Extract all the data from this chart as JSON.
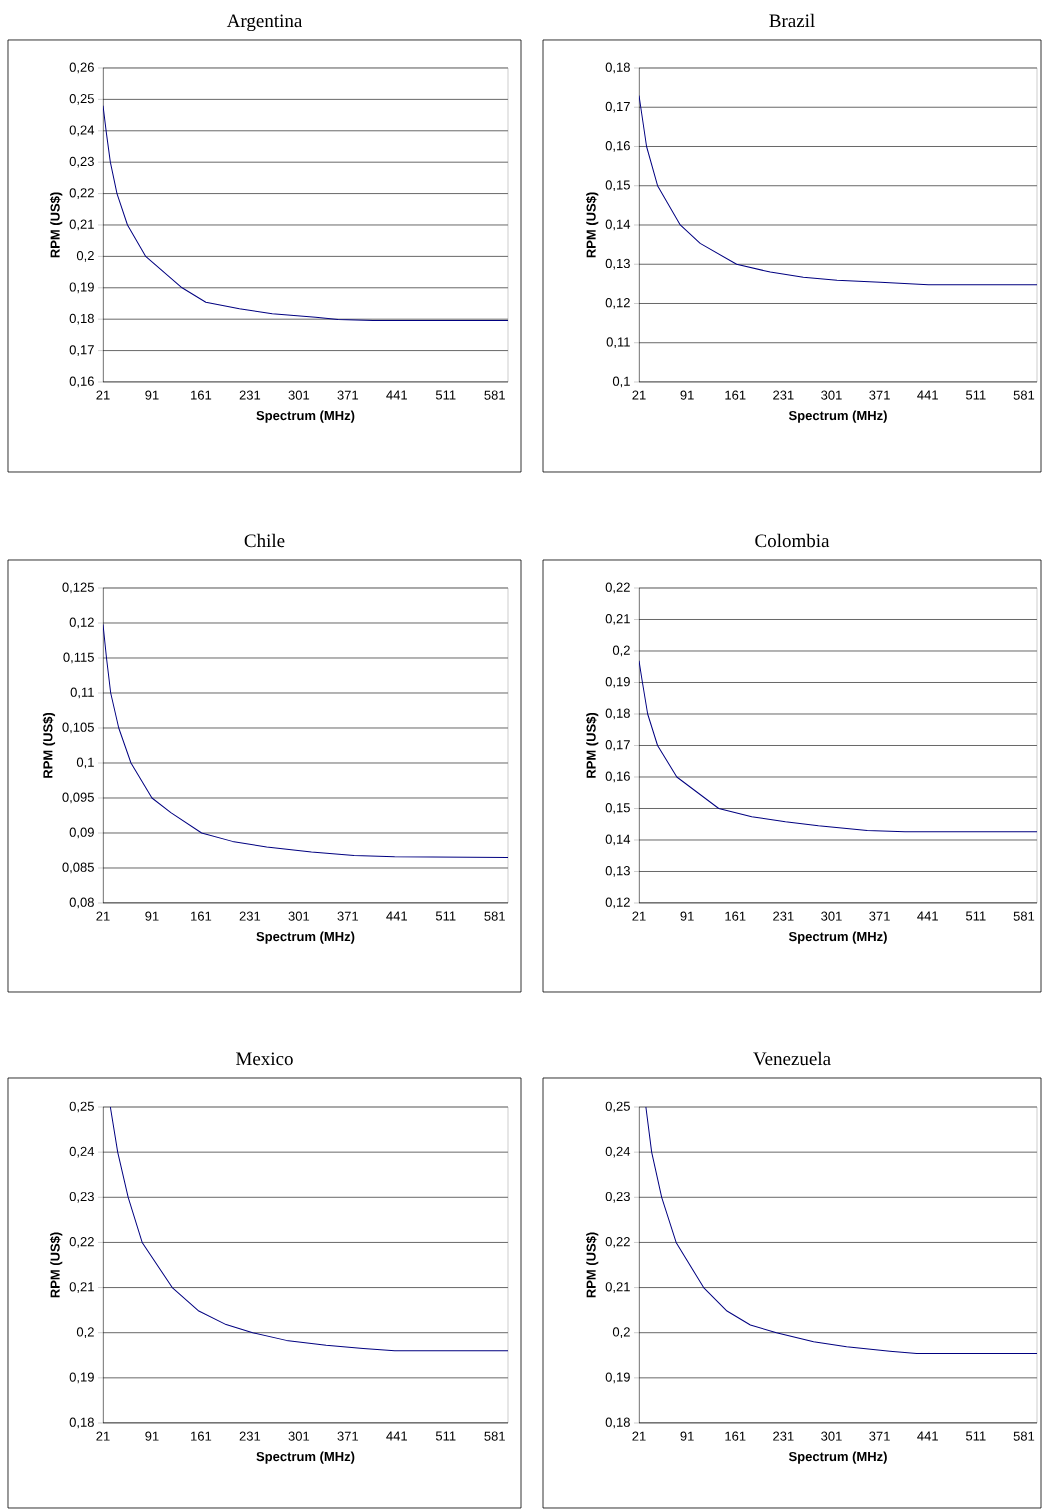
{
  "chart_data": [
    {
      "type": "line",
      "title": "Argentina",
      "xlabel": "Spectrum (MHz)",
      "ylabel": "RPM (US$)",
      "color": "#000080",
      "grid": "y",
      "x": [
        21,
        26,
        31.5,
        41,
        56,
        82,
        134,
        168,
        216,
        263,
        325,
        357,
        407,
        600
      ],
      "values": [
        0.248,
        0.239,
        0.23,
        0.22,
        0.21,
        0.2,
        0.19,
        0.1854,
        0.1833,
        0.1817,
        0.1806,
        0.1799,
        0.1796,
        0.1796
      ],
      "xlim": [
        21,
        600
      ],
      "xticks": [
        21,
        91,
        161,
        231,
        301,
        371,
        441,
        511,
        581
      ],
      "ylim": [
        0.16,
        0.26
      ],
      "yticks": [
        {
          "value": 0.16,
          "label": "0,16"
        },
        {
          "value": 0.17,
          "label": "0,17"
        },
        {
          "value": 0.18,
          "label": "0,18"
        },
        {
          "value": 0.19,
          "label": "0,19"
        },
        {
          "value": 0.2,
          "label": "0,2"
        },
        {
          "value": 0.21,
          "label": "0,21"
        },
        {
          "value": 0.22,
          "label": "0,22"
        },
        {
          "value": 0.23,
          "label": "0,23"
        },
        {
          "value": 0.24,
          "label": "0,24"
        },
        {
          "value": 0.25,
          "label": "0,25"
        },
        {
          "value": 0.26,
          "label": "0,26"
        }
      ]
    },
    {
      "type": "line",
      "title": "Brazil",
      "xlabel": "Spectrum (MHz)",
      "ylabel": "RPM (US$)",
      "color": "#000080",
      "grid": "y",
      "x": [
        21,
        32,
        48,
        81,
        110,
        163,
        212,
        260,
        309,
        372,
        442,
        600
      ],
      "values": [
        0.173,
        0.16,
        0.15,
        0.14,
        0.1353,
        0.13,
        0.128,
        0.1267,
        0.1259,
        0.1254,
        0.1248,
        0.1248
      ],
      "xlim": [
        21,
        600
      ],
      "xticks": [
        21,
        91,
        161,
        231,
        301,
        371,
        441,
        511,
        581
      ],
      "ylim": [
        0.1,
        0.18
      ],
      "yticks": [
        {
          "value": 0.1,
          "label": "0,1"
        },
        {
          "value": 0.11,
          "label": "0,11"
        },
        {
          "value": 0.12,
          "label": "0,12"
        },
        {
          "value": 0.13,
          "label": "0,13"
        },
        {
          "value": 0.14,
          "label": "0,14"
        },
        {
          "value": 0.15,
          "label": "0,15"
        },
        {
          "value": 0.16,
          "label": "0,16"
        },
        {
          "value": 0.17,
          "label": "0,17"
        },
        {
          "value": 0.18,
          "label": "0,18"
        }
      ]
    },
    {
      "type": "line",
      "title": "Chile",
      "xlabel": "Spectrum (MHz)",
      "ylabel": "RPM (US$)",
      "color": "#000080",
      "grid": "y",
      "x": [
        21,
        26,
        32,
        43.5,
        61,
        91,
        118,
        162,
        206,
        255,
        319,
        380,
        438,
        600
      ],
      "values": [
        0.1198,
        0.115,
        0.11,
        0.105,
        0.1,
        0.095,
        0.0929,
        0.09,
        0.0888,
        0.088,
        0.0873,
        0.0868,
        0.0866,
        0.0865
      ],
      "xlim": [
        21,
        600
      ],
      "xticks": [
        21,
        91,
        161,
        231,
        301,
        371,
        441,
        511,
        581
      ],
      "ylim": [
        0.08,
        0.125
      ],
      "yticks": [
        {
          "value": 0.08,
          "label": "0,08"
        },
        {
          "value": 0.085,
          "label": "0,085"
        },
        {
          "value": 0.09,
          "label": "0,09"
        },
        {
          "value": 0.095,
          "label": "0,095"
        },
        {
          "value": 0.1,
          "label": "0,1"
        },
        {
          "value": 0.105,
          "label": "0,105"
        },
        {
          "value": 0.11,
          "label": "0,11"
        },
        {
          "value": 0.115,
          "label": "0,115"
        },
        {
          "value": 0.12,
          "label": "0,12"
        },
        {
          "value": 0.125,
          "label": "0,125"
        }
      ]
    },
    {
      "type": "line",
      "title": "Colombia",
      "xlabel": "Spectrum (MHz)",
      "ylabel": "RPM (US$)",
      "color": "#000080",
      "grid": "y",
      "x": [
        21,
        26,
        33.6,
        48,
        76,
        137,
        185,
        234,
        282,
        353,
        408,
        600
      ],
      "values": [
        0.1969,
        0.19,
        0.18,
        0.17,
        0.16,
        0.15,
        0.1474,
        0.1458,
        0.1445,
        0.143,
        0.1426,
        0.1426
      ],
      "xlim": [
        21,
        600
      ],
      "xticks": [
        21,
        91,
        161,
        231,
        301,
        371,
        441,
        511,
        581
      ],
      "ylim": [
        0.12,
        0.22
      ],
      "yticks": [
        {
          "value": 0.12,
          "label": "0,12"
        },
        {
          "value": 0.13,
          "label": "0,13"
        },
        {
          "value": 0.14,
          "label": "0,14"
        },
        {
          "value": 0.15,
          "label": "0,15"
        },
        {
          "value": 0.16,
          "label": "0,16"
        },
        {
          "value": 0.17,
          "label": "0,17"
        },
        {
          "value": 0.18,
          "label": "0,18"
        },
        {
          "value": 0.19,
          "label": "0,19"
        },
        {
          "value": 0.2,
          "label": "0,2"
        },
        {
          "value": 0.21,
          "label": "0,21"
        },
        {
          "value": 0.22,
          "label": "0,22"
        }
      ]
    },
    {
      "type": "line",
      "title": "Mexico",
      "xlabel": "Spectrum (MHz)",
      "ylabel": "RPM (US$)",
      "color": "#000080",
      "grid": "y",
      "x": [
        31.5,
        42,
        57,
        77,
        120,
        158,
        197,
        235,
        283,
        340,
        393,
        438,
        600
      ],
      "values": [
        0.25,
        0.24,
        0.23,
        0.22,
        0.21,
        0.2048,
        0.2018,
        0.2,
        0.1983,
        0.1972,
        0.1965,
        0.196,
        0.196
      ],
      "xlim": [
        21,
        600
      ],
      "xticks": [
        21,
        91,
        161,
        231,
        301,
        371,
        441,
        511,
        581
      ],
      "ylim": [
        0.18,
        0.25
      ],
      "yticks": [
        {
          "value": 0.18,
          "label": "0,18"
        },
        {
          "value": 0.19,
          "label": "0,19"
        },
        {
          "value": 0.2,
          "label": "0,2"
        },
        {
          "value": 0.21,
          "label": "0,21"
        },
        {
          "value": 0.22,
          "label": "0,22"
        },
        {
          "value": 0.23,
          "label": "0,23"
        },
        {
          "value": 0.24,
          "label": "0,24"
        },
        {
          "value": 0.25,
          "label": "0,25"
        }
      ]
    },
    {
      "type": "line",
      "title": "Venezuela",
      "xlabel": "Spectrum (MHz)",
      "ylabel": "RPM (US$)",
      "color": "#000080",
      "grid": "y",
      "x": [
        31,
        39.4,
        54,
        75,
        115,
        149,
        183,
        221,
        275,
        323,
        386,
        425,
        600
      ],
      "values": [
        0.25,
        0.24,
        0.23,
        0.22,
        0.21,
        0.2048,
        0.2017,
        0.2,
        0.198,
        0.1969,
        0.1959,
        0.1954,
        0.1954
      ],
      "xlim": [
        21,
        600
      ],
      "xticks": [
        21,
        91,
        161,
        231,
        301,
        371,
        441,
        511,
        581
      ],
      "ylim": [
        0.18,
        0.25
      ],
      "yticks": [
        {
          "value": 0.18,
          "label": "0,18"
        },
        {
          "value": 0.19,
          "label": "0,19"
        },
        {
          "value": 0.2,
          "label": "0,2"
        },
        {
          "value": 0.21,
          "label": "0,21"
        },
        {
          "value": 0.22,
          "label": "0,22"
        },
        {
          "value": 0.23,
          "label": "0,23"
        },
        {
          "value": 0.24,
          "label": "0,24"
        },
        {
          "value": 0.25,
          "label": "0,25"
        }
      ]
    }
  ]
}
